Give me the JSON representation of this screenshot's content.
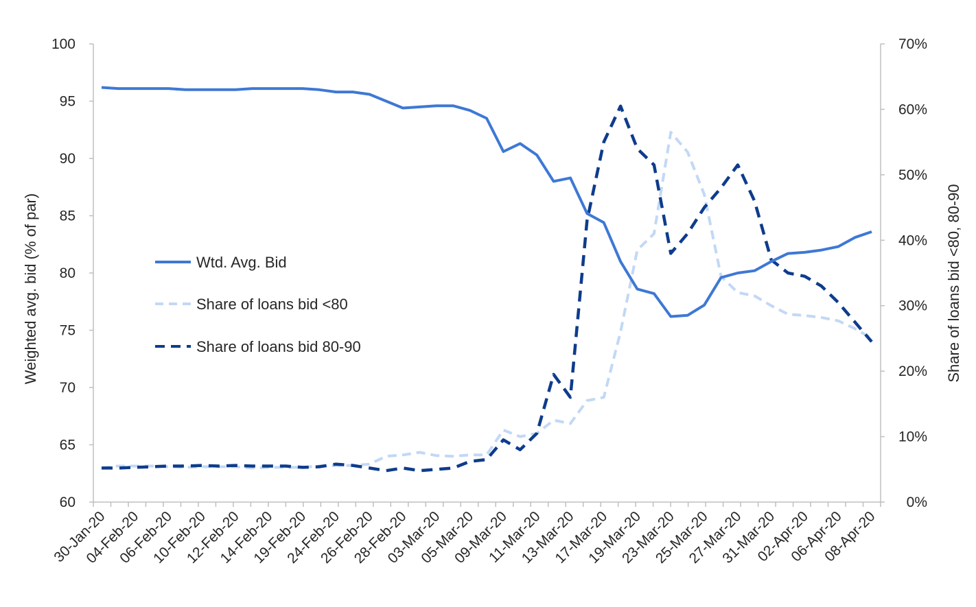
{
  "chart_data": {
    "type": "line",
    "xlabel": "",
    "ylabel": "Weighted avg. bid (% of par)",
    "y2label": "Share of loans bid <80, 80-90",
    "ylim": [
      60,
      100
    ],
    "y2lim": [
      0,
      70
    ],
    "yticks": [
      "60",
      "65",
      "70",
      "75",
      "80",
      "85",
      "90",
      "95",
      "100"
    ],
    "y2ticks": [
      "0%",
      "10%",
      "20%",
      "30%",
      "40%",
      "50%",
      "60%",
      "70%"
    ],
    "xtick_labels": [
      "30-Jan-20",
      "04-Feb-20",
      "06-Feb-20",
      "10-Feb-20",
      "12-Feb-20",
      "14-Feb-20",
      "19-Feb-20",
      "24-Feb-20",
      "26-Feb-20",
      "28-Feb-20",
      "03-Mar-20",
      "05-Mar-20",
      "09-Mar-20",
      "11-Mar-20",
      "13-Mar-20",
      "17-Mar-20",
      "19-Mar-20",
      "23-Mar-20",
      "25-Mar-20",
      "27-Mar-20",
      "31-Mar-20",
      "02-Apr-20",
      "06-Apr-20",
      "08-Apr-20"
    ],
    "legend_position": "center-left",
    "series": [
      {
        "name": "Wtd. Avg. Bid",
        "axis": "left",
        "style": "solid",
        "color": "#3E78D4",
        "values": [
          96.2,
          96.1,
          96.1,
          96.1,
          96.1,
          96.0,
          96.0,
          96.0,
          96.0,
          96.1,
          96.1,
          96.1,
          96.1,
          96.0,
          95.8,
          95.8,
          95.6,
          95.0,
          94.4,
          94.5,
          94.6,
          94.6,
          94.2,
          93.5,
          90.6,
          91.3,
          90.3,
          88.0,
          88.3,
          85.2,
          84.4,
          81.0,
          78.6,
          78.2,
          76.2,
          76.3,
          77.2,
          79.6,
          80.0,
          80.2,
          81.0,
          81.7,
          81.8,
          82.0,
          82.3,
          83.1,
          83.6
        ]
      },
      {
        "name": "Share of loans bid <80",
        "axis": "right",
        "style": "dashed",
        "color": "#C2D8F5",
        "values": [
          5.2,
          5.5,
          5.5,
          5.5,
          5.4,
          5.3,
          5.4,
          5.4,
          5.4,
          5.2,
          5.3,
          5.3,
          5.3,
          5.5,
          5.6,
          5.6,
          5.8,
          7.0,
          7.2,
          7.6,
          7.1,
          7.0,
          7.2,
          7.2,
          11.0,
          10.0,
          10.5,
          12.5,
          12.0,
          15.5,
          16.0,
          26.0,
          38.5,
          41.0,
          56.5,
          53.5,
          47.0,
          34.5,
          32.0,
          31.5,
          30.0,
          28.7,
          28.5,
          28.2,
          27.7,
          26.5,
          25.0
        ]
      },
      {
        "name": "Share of loans bid 80-90",
        "axis": "right",
        "style": "dashed",
        "color": "#0E3C8C",
        "values": [
          5.2,
          5.2,
          5.3,
          5.4,
          5.5,
          5.5,
          5.6,
          5.5,
          5.6,
          5.5,
          5.5,
          5.5,
          5.3,
          5.4,
          5.8,
          5.6,
          5.2,
          4.8,
          5.2,
          4.8,
          5.0,
          5.2,
          6.2,
          6.5,
          9.5,
          8.0,
          10.5,
          19.5,
          16.0,
          43.0,
          55.0,
          60.5,
          54.0,
          51.5,
          38.0,
          41.0,
          45.0,
          48.0,
          51.5,
          46.0,
          37.0,
          35.0,
          34.5,
          33.0,
          30.5,
          27.5,
          24.5
        ]
      }
    ]
  }
}
